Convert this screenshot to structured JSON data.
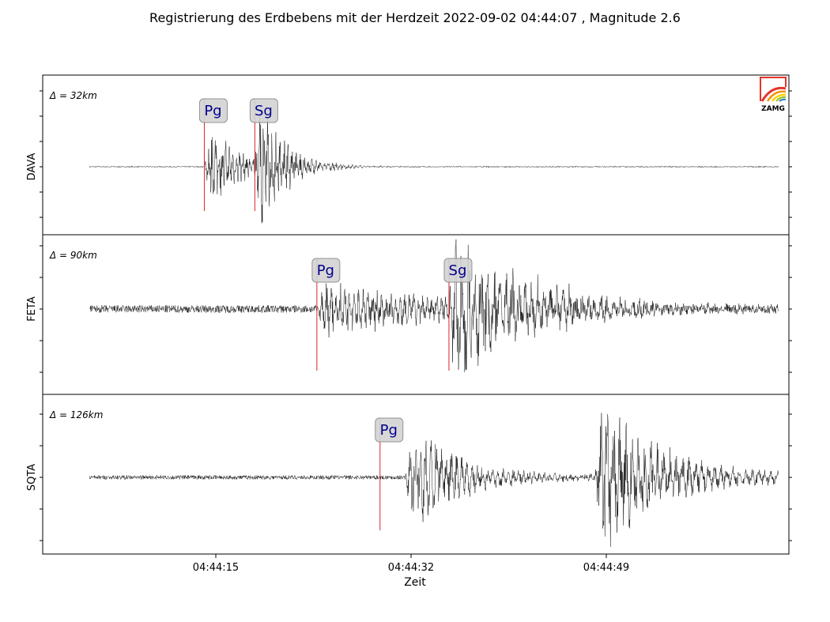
{
  "title": "Registrierung des Erdbebens mit der Herdzeit 2022-09-02 04:44:07 , Magnitude 2.6",
  "xlabel": "Zeit",
  "logo": {
    "text": "ZAMG"
  },
  "colors": {
    "trace": "#000000",
    "pick_line": "#d62728",
    "pick_text": "#00008b",
    "pick_box": "#d3d3d3",
    "logo_red": "#e5332a"
  },
  "chart_data": {
    "type": "line",
    "x_unit": "time",
    "x_range": [
      "04:44:04",
      "04:45:04"
    ],
    "x_ticks": [
      "04:44:15",
      "04:44:32",
      "04:44:49"
    ],
    "panels": [
      {
        "station": "DAVA",
        "distance_label": "Δ = 32km",
        "picks": [
          {
            "phase": "Pg",
            "time": "04:44:14"
          },
          {
            "phase": "Sg",
            "time": "04:44:18.4"
          }
        ],
        "signal": {
          "noise": 0.008,
          "events": [
            {
              "start": "04:44:14",
              "amp": 0.55,
              "decay": 3.0,
              "period": 0.3
            },
            {
              "start": "04:44:18.4",
              "amp": 1.0,
              "decay": 2.2,
              "period": 0.35
            }
          ],
          "peak_time": "04:44:21"
        }
      },
      {
        "station": "FETA",
        "distance_label": "Δ = 90km",
        "picks": [
          {
            "phase": "Pg",
            "time": "04:44:23.8"
          },
          {
            "phase": "Sg",
            "time": "04:44:35.3"
          }
        ],
        "signal": {
          "noise": 0.055,
          "events": [
            {
              "start": "04:44:23.8",
              "amp": 0.35,
              "decay": 12.0,
              "period": 0.4
            },
            {
              "start": "04:44:35.3",
              "amp": 1.0,
              "decay": 7.0,
              "period": 0.55
            }
          ],
          "peak_time": "04:44:38"
        }
      },
      {
        "station": "SQTA",
        "distance_label": "Δ = 126km",
        "picks": [
          {
            "phase": "Pg",
            "time": "04:44:29.3"
          }
        ],
        "signal": {
          "noise": 0.03,
          "events": [
            {
              "start": "04:44:31.5",
              "amp": 0.75,
              "decay": 4.5,
              "period": 0.45
            },
            {
              "start": "04:44:48",
              "amp": 1.0,
              "decay": 6.0,
              "period": 0.55
            }
          ],
          "peak_time": "04:44:49.5"
        }
      }
    ]
  }
}
